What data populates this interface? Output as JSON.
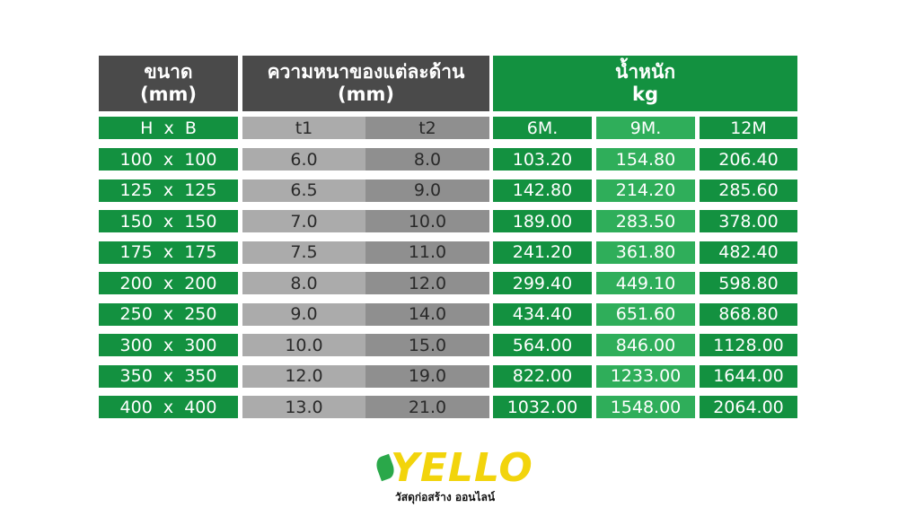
{
  "header": {
    "cells": [
      [
        "ขนาด",
        "(mm)"
      ],
      [
        "ความหนาของแต่ละด้าน",
        "(mm)"
      ],
      [
        "น้ำหนัก",
        "kg"
      ]
    ]
  },
  "table": {
    "subheader": [
      "H  x  B",
      "t1",
      "t2",
      "6M.",
      "9M.",
      "12M"
    ],
    "rows": [
      [
        "100  x  100",
        "6.0",
        "8.0",
        "103.20",
        "154.80",
        "206.40"
      ],
      [
        "125  x  125",
        "6.5",
        "9.0",
        "142.80",
        "214.20",
        "285.60"
      ],
      [
        "150  x  150",
        "7.0",
        "10.0",
        "189.00",
        "283.50",
        "378.00"
      ],
      [
        "175  x  175",
        "7.5",
        "11.0",
        "241.20",
        "361.80",
        "482.40"
      ],
      [
        "200  x  200",
        "8.0",
        "12.0",
        "299.40",
        "449.10",
        "598.80"
      ],
      [
        "250  x  250",
        "9.0",
        "14.0",
        "434.40",
        "651.60",
        "868.80"
      ],
      [
        "300  x  300",
        "10.0",
        "15.0",
        "564.00",
        "846.00",
        "1128.00"
      ],
      [
        "350  x  350",
        "12.0",
        "19.0",
        "822.00",
        "1233.00",
        "1644.00"
      ],
      [
        "400  x  400",
        "13.0",
        "21.0",
        "1032.00",
        "1548.00",
        "2064.00"
      ]
    ]
  },
  "logo": {
    "name": "YELLO",
    "tagline": "วัสดุก่อสร้าง ออนไลน์"
  }
}
